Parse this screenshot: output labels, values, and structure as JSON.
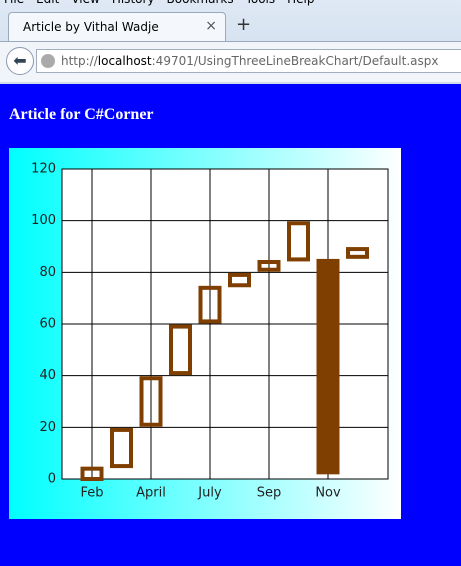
{
  "browser": {
    "menu": [
      "File",
      "Edit",
      "View",
      "History",
      "Bookmarks",
      "Tools",
      "Help"
    ],
    "tab_title": "Article by Vithal Wadje",
    "url_parts": [
      "http://",
      "localhost",
      ":49701/UsingThreeLineBreakChart/Default.aspx"
    ]
  },
  "heading": "Article for C#Corner",
  "chart_data": {
    "type": "three-line-break",
    "categories": [
      "Feb",
      null,
      "April",
      null,
      "July",
      null,
      "Sep",
      null,
      "Nov",
      null
    ],
    "values": [
      [
        0,
        4
      ],
      [
        5,
        19
      ],
      [
        21,
        39
      ],
      [
        41,
        59
      ],
      [
        61,
        74
      ],
      [
        75,
        79
      ],
      [
        81,
        84
      ],
      [
        85,
        99
      ],
      [
        2,
        85
      ],
      [
        86,
        89
      ]
    ],
    "filled": [
      false,
      false,
      false,
      false,
      false,
      false,
      false,
      false,
      true,
      false
    ],
    "color": "#7f3f00",
    "ylim": [
      0,
      120
    ],
    "yticks": [
      0,
      20,
      40,
      60,
      80,
      100,
      120
    ],
    "grid": true
  }
}
